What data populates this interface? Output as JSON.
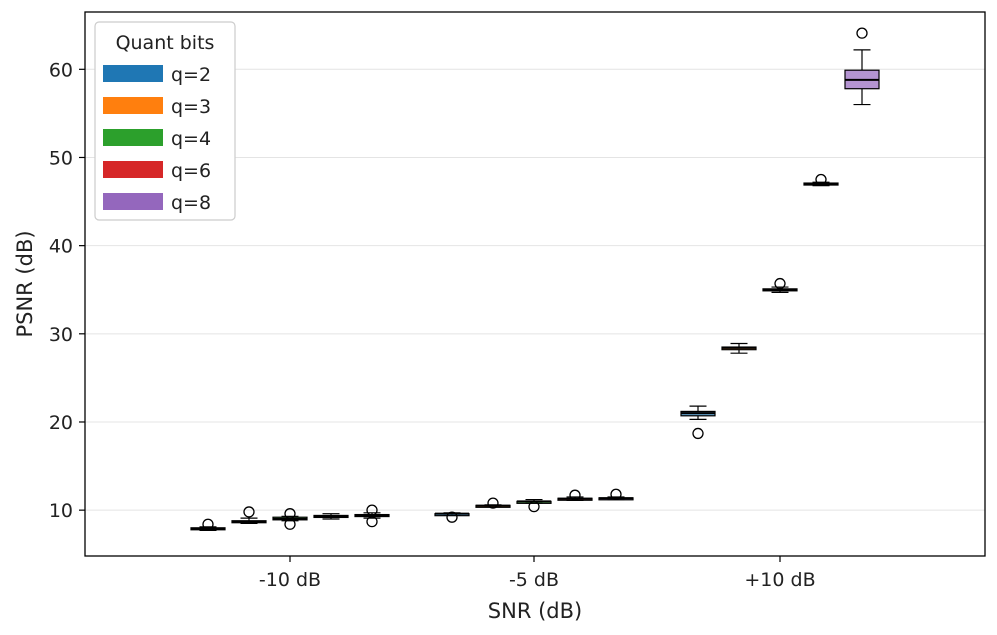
{
  "chart_data": {
    "type": "box",
    "xlabel": "SNR (dB)",
    "ylabel": "PSNR (dB)",
    "ylim": [
      4.8,
      66.5
    ],
    "yticks": [
      10,
      20,
      30,
      40,
      50,
      60
    ],
    "grid": "horizontal",
    "categories": [
      "-10 dB",
      "-5 dB",
      "+10 dB"
    ],
    "legend": {
      "title": "Quant bits",
      "placement": "top-left",
      "entries": [
        {
          "label": "q=2",
          "color": "#1f77b4"
        },
        {
          "label": "q=3",
          "color": "#ff7f0e"
        },
        {
          "label": "q=4",
          "color": "#2ca02c"
        },
        {
          "label": "q=6",
          "color": "#d62728"
        },
        {
          "label": "q=8",
          "color": "#9467bd"
        }
      ]
    },
    "boxes": [
      {
        "category": "-10 dB",
        "q": "q=2",
        "whisker_low": 7.7,
        "q1": 7.8,
        "median": 7.9,
        "q3": 8.0,
        "whisker_high": 8.1,
        "outliers": [
          8.4
        ]
      },
      {
        "category": "-10 dB",
        "q": "q=3",
        "whisker_low": 8.5,
        "q1": 8.6,
        "median": 8.7,
        "q3": 8.8,
        "whisker_high": 9.1,
        "outliers": [
          9.8
        ]
      },
      {
        "category": "-10 dB",
        "q": "q=4",
        "whisker_low": 8.8,
        "q1": 8.9,
        "median": 9.0,
        "q3": 9.2,
        "whisker_high": 9.3,
        "outliers": [
          9.6,
          8.4
        ]
      },
      {
        "category": "-10 dB",
        "q": "q=6",
        "whisker_low": 9.0,
        "q1": 9.2,
        "median": 9.3,
        "q3": 9.4,
        "whisker_high": 9.6,
        "outliers": []
      },
      {
        "category": "-10 dB",
        "q": "q=8",
        "whisker_low": 9.1,
        "q1": 9.3,
        "median": 9.4,
        "q3": 9.5,
        "whisker_high": 9.7,
        "outliers": [
          10.0,
          8.7
        ]
      },
      {
        "category": "-5 dB",
        "q": "q=2",
        "whisker_low": 9.4,
        "q1": 9.5,
        "median": 9.6,
        "q3": 9.6,
        "whisker_high": 9.7,
        "outliers": [
          9.2
        ]
      },
      {
        "category": "-5 dB",
        "q": "q=3",
        "whisker_low": 10.4,
        "q1": 10.45,
        "median": 10.5,
        "q3": 10.55,
        "whisker_high": 10.6,
        "outliers": [
          10.8
        ]
      },
      {
        "category": "-5 dB",
        "q": "q=4",
        "whisker_low": 10.8,
        "q1": 10.9,
        "median": 11.0,
        "q3": 11.0,
        "whisker_high": 11.2,
        "outliers": [
          10.4
        ]
      },
      {
        "category": "-5 dB",
        "q": "q=6",
        "whisker_low": 11.1,
        "q1": 11.2,
        "median": 11.3,
        "q3": 11.35,
        "whisker_high": 11.5,
        "outliers": [
          11.7
        ]
      },
      {
        "category": "-5 dB",
        "q": "q=8",
        "whisker_low": 11.2,
        "q1": 11.3,
        "median": 11.35,
        "q3": 11.4,
        "whisker_high": 11.5,
        "outliers": [
          11.8
        ]
      },
      {
        "category": "+10 dB",
        "q": "q=2",
        "whisker_low": 20.3,
        "q1": 20.7,
        "median": 21.0,
        "q3": 21.2,
        "whisker_high": 21.8,
        "outliers": [
          18.7
        ]
      },
      {
        "category": "+10 dB",
        "q": "q=3",
        "whisker_low": 27.8,
        "q1": 28.2,
        "median": 28.4,
        "q3": 28.5,
        "whisker_high": 28.9,
        "outliers": []
      },
      {
        "category": "+10 dB",
        "q": "q=4",
        "whisker_low": 34.7,
        "q1": 34.9,
        "median": 35.0,
        "q3": 35.1,
        "whisker_high": 35.3,
        "outliers": [
          35.7
        ]
      },
      {
        "category": "+10 dB",
        "q": "q=6",
        "whisker_low": 46.8,
        "q1": 46.9,
        "median": 47.0,
        "q3": 47.1,
        "whisker_high": 47.2,
        "outliers": [
          47.5
        ]
      },
      {
        "category": "+10 dB",
        "q": "q=8",
        "whisker_low": 56.0,
        "q1": 57.8,
        "median": 58.8,
        "q3": 59.9,
        "whisker_high": 62.2,
        "outliers": [
          64.1
        ]
      }
    ]
  }
}
